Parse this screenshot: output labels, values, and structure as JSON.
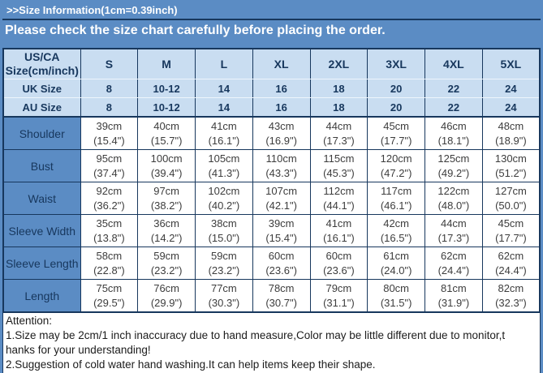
{
  "colors": {
    "page_bg": "#5b8cc4",
    "dark_border": "#17375d",
    "header_row_bg": "#c9ddf1",
    "banner_text": "#ffffff",
    "cell_bg": "#ffffff"
  },
  "banner": {
    "title": ">>Size Information(1cm=0.39inch)",
    "subtitle": "Please check the size chart carefully before placing the order."
  },
  "table": {
    "corner_label_line1": "US/CA",
    "corner_label_line2": "Size(cm/inch)",
    "sizes": [
      "S",
      "M",
      "L",
      "XL",
      "2XL",
      "3XL",
      "4XL",
      "5XL"
    ],
    "uk": {
      "label": "UK Size",
      "values": [
        "8",
        "10-12",
        "14",
        "16",
        "18",
        "20",
        "22",
        "24"
      ]
    },
    "au": {
      "label": "AU Size",
      "values": [
        "8",
        "10-12",
        "14",
        "16",
        "18",
        "20",
        "22",
        "24"
      ]
    },
    "rows": [
      {
        "label": "Shoulder",
        "cm": [
          "39cm",
          "40cm",
          "41cm",
          "43cm",
          "44cm",
          "45cm",
          "46cm",
          "48cm"
        ],
        "inch": [
          "(15.4\")",
          "(15.7\")",
          "(16.1\")",
          "(16.9\")",
          "(17.3\")",
          "(17.7\")",
          "(18.1\")",
          "(18.9\")"
        ]
      },
      {
        "label": "Bust",
        "cm": [
          "95cm",
          "100cm",
          "105cm",
          "110cm",
          "115cm",
          "120cm",
          "125cm",
          "130cm"
        ],
        "inch": [
          "(37.4\")",
          "(39.4\")",
          "(41.3\")",
          "(43.3\")",
          "(45.3\")",
          "(47.2\")",
          "(49.2\")",
          "(51.2\")"
        ]
      },
      {
        "label": "Waist",
        "cm": [
          "92cm",
          "97cm",
          "102cm",
          "107cm",
          "112cm",
          "117cm",
          "122cm",
          "127cm"
        ],
        "inch": [
          "(36.2\")",
          "(38.2\")",
          "(40.2\")",
          "(42.1\")",
          "(44.1\")",
          "(46.1\")",
          "(48.0\")",
          "(50.0\")"
        ]
      },
      {
        "label": "Sleeve Width",
        "cm": [
          "35cm",
          "36cm",
          "38cm",
          "39cm",
          "41cm",
          "42cm",
          "44cm",
          "45cm"
        ],
        "inch": [
          "(13.8\")",
          "(14.2\")",
          "(15.0\")",
          "(15.4\")",
          "(16.1\")",
          "(16.5\")",
          "(17.3\")",
          "(17.7\")"
        ]
      },
      {
        "label": "Sleeve Length",
        "cm": [
          "58cm",
          "59cm",
          "59cm",
          "60cm",
          "60cm",
          "61cm",
          "62cm",
          "62cm"
        ],
        "inch": [
          "(22.8\")",
          "(23.2\")",
          "(23.2\")",
          "(23.6\")",
          "(23.6\")",
          "(24.0\")",
          "(24.4\")",
          "(24.4\")"
        ]
      },
      {
        "label": "Length",
        "cm": [
          "75cm",
          "76cm",
          "77cm",
          "78cm",
          "79cm",
          "80cm",
          "81cm",
          "82cm"
        ],
        "inch": [
          "(29.5\")",
          "(29.9\")",
          "(30.3\")",
          "(30.7\")",
          "(31.1\")",
          "(31.5\")",
          "(31.9\")",
          "(32.3\")"
        ]
      }
    ]
  },
  "attention": {
    "lines": [
      "Attention:",
      "1.Size may be 2cm/1 inch inaccuracy due to hand measure,Color may be little different due to monitor,t",
      "hanks for your understanding!",
      "2.Suggestion of cold water hand washing.It can help items keep their shape."
    ]
  }
}
